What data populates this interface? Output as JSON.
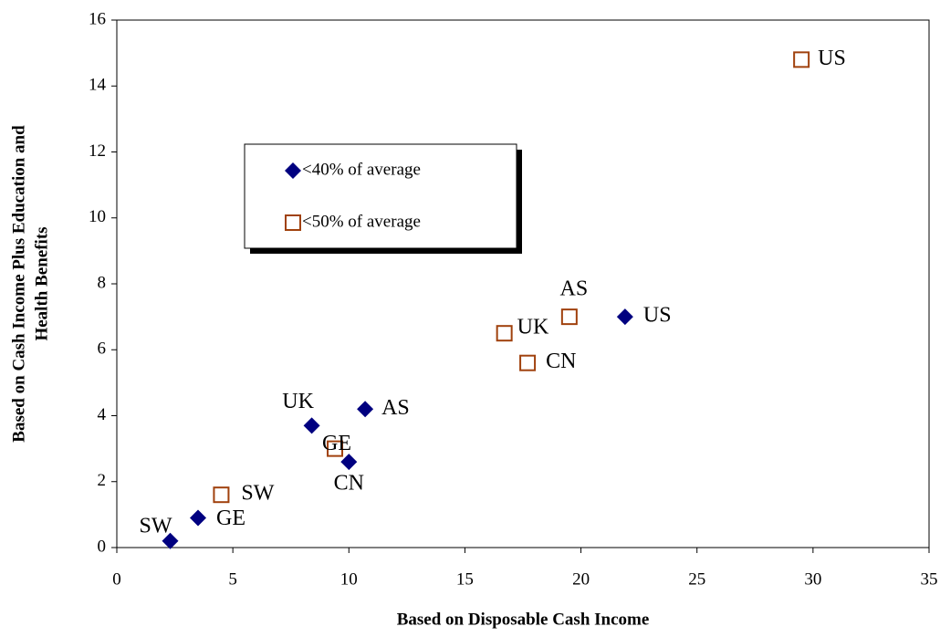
{
  "chart_data": {
    "type": "scatter",
    "x_label": "Based on Disposable Cash Income",
    "y_label": [
      "Based on Cash Income Plus Education and",
      "Health Benefits"
    ],
    "xlim": [
      0,
      35
    ],
    "xticks": [
      0,
      5,
      10,
      15,
      20,
      25,
      30,
      35
    ],
    "ylim": [
      0,
      16
    ],
    "yticks": [
      0,
      2,
      4,
      6,
      8,
      10,
      12,
      14,
      16
    ],
    "series": [
      {
        "name": "<40% of average",
        "color": "#000080",
        "marker": "diamond",
        "labels": [
          "SW",
          "GE",
          "UK",
          "CN",
          "AS",
          "US"
        ],
        "x": [
          2.3,
          3.5,
          8.4,
          10.0,
          10.7,
          21.9
        ],
        "values": [
          0.2,
          0.9,
          3.7,
          2.6,
          4.2,
          7.0
        ]
      },
      {
        "name": "<50% of average",
        "color": "#a0410d",
        "marker": "square",
        "labels": [
          "SW",
          "GE",
          "UK",
          "CN",
          "AS",
          "US"
        ],
        "x": [
          4.5,
          9.4,
          16.7,
          17.7,
          19.5,
          29.5
        ],
        "values": [
          1.6,
          3.0,
          6.5,
          5.6,
          7.0,
          14.8
        ]
      }
    ]
  }
}
